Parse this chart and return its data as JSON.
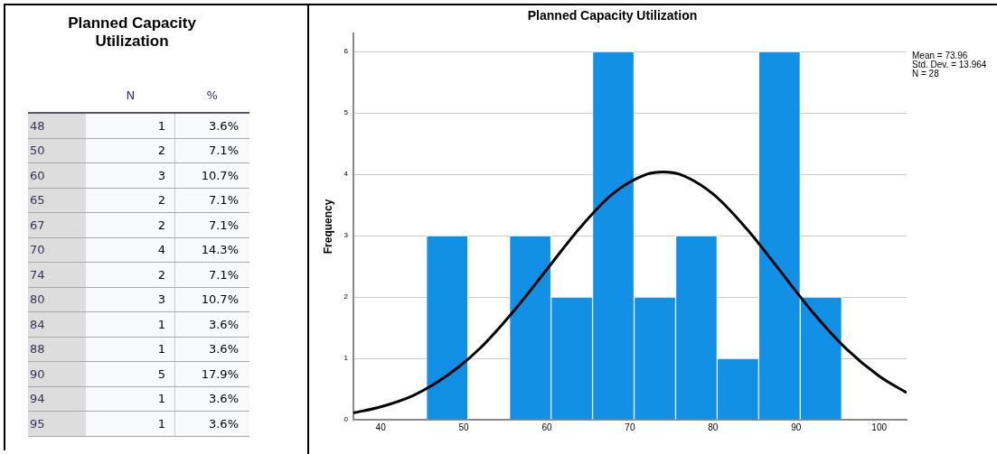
{
  "chart_data": [
    {
      "type": "other",
      "title": "Planned Capacity Utilization",
      "categories": [
        "48",
        "50",
        "60",
        "65",
        "67",
        "70",
        "74",
        "80",
        "84",
        "88",
        "90",
        "94",
        "95"
      ],
      "series": [
        {
          "name": "N",
          "values": [
            1,
            2,
            3,
            2,
            2,
            4,
            2,
            3,
            1,
            1,
            5,
            1,
            1
          ]
        },
        {
          "name": "%",
          "values": [
            3.6,
            7.1,
            10.7,
            7.1,
            7.1,
            14.3,
            7.1,
            10.7,
            3.6,
            3.6,
            17.9,
            3.6,
            3.6
          ],
          "value_labels": [
            "3.6%",
            "7.1%",
            "10.7%",
            "7.1%",
            "7.1%",
            "14.3%",
            "7.1%",
            "10.7%",
            "3.6%",
            "3.6%",
            "17.9%",
            "3.6%",
            "3.6%"
          ]
        }
      ],
      "data_labels": true
    },
    {
      "type": "histogram",
      "title": "Planned Capacity Utilization",
      "ylabel": "Frequency",
      "color": "#1290e6",
      "bins": [
        45.5,
        50.5,
        55.5,
        60.5,
        65.5,
        70.5,
        75.5,
        80.5,
        85.5,
        90.5,
        95.5
      ],
      "values": [
        3,
        0,
        3,
        2,
        6,
        2,
        3,
        1,
        6,
        2
      ],
      "series": [
        {
          "type": "line",
          "color": "#000000",
          "x": [
            36.7,
            40,
            44,
            48,
            52,
            56,
            60,
            64,
            68,
            72,
            74,
            76,
            80,
            84,
            88,
            92,
            96,
            100,
            103.3
          ],
          "values": [
            0.11,
            0.21,
            0.4,
            0.72,
            1.17,
            1.77,
            2.45,
            3.13,
            3.69,
            4.0,
            4.04,
            4.0,
            3.68,
            3.12,
            2.44,
            1.75,
            1.16,
            0.71,
            0.44
          ]
        }
      ],
      "xlim": [
        36.7,
        103.3
      ],
      "xticks": [
        40,
        50,
        60,
        70,
        80,
        90,
        100
      ],
      "ylim": [
        0,
        6.3
      ],
      "yticks": [
        0,
        1,
        2,
        3,
        4,
        5,
        6
      ],
      "grid": "y",
      "legend": false,
      "annotations": [
        "Mean = 73.96",
        "Std. Dev. = 13.964",
        "N = 28"
      ]
    }
  ]
}
